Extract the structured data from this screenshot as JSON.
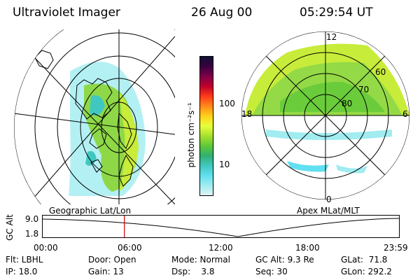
{
  "header": {
    "title": "Ultraviolet Imager",
    "date": "26 Aug 00",
    "time": "05:29:54 UT"
  },
  "left_map": {
    "caption": "Geographic Lat/Lon"
  },
  "colorbar": {
    "axis_label": "photon cm⁻²s⁻¹",
    "ticks": [
      "100",
      "10"
    ],
    "colors": [
      "#111133",
      "#3a0040",
      "#80004a",
      "#c0002a",
      "#ff3a1a",
      "#ff8a1a",
      "#ffd21a",
      "#e8ff3a",
      "#a8e030",
      "#60c838",
      "#30b070",
      "#40c8c0",
      "#60e0f0",
      "#a0ecf0",
      "#e0f4f4"
    ]
  },
  "right_map": {
    "caption": "Apex MLat/MLT",
    "mlt_labels": {
      "top": "12",
      "left": "18",
      "right": "6",
      "bottom": "0"
    },
    "mlat_labels": [
      "60",
      "70",
      "80"
    ]
  },
  "timeline": {
    "y_axis_label": "GC Alt",
    "y_ticks": [
      "9.0",
      "1.8"
    ],
    "x_ticks": [
      "00:00",
      "06:00",
      "12:00",
      "18:00",
      "23:59"
    ],
    "current_time_marker": "05:29:54",
    "marker_color": "#cc0000"
  },
  "info": {
    "flt": "Flt: LBHL",
    "ip": "IP: 18.0",
    "door": "Door: Open",
    "gain": "Gain: 13",
    "mode": "Mode: Normal",
    "dsp": "Dsp:    3.8",
    "gcalt": "GC Alt: 9.3 Re",
    "seq": "Seq: 30",
    "glat": "GLat:  71.8",
    "glon": "GLon: 292.2"
  }
}
